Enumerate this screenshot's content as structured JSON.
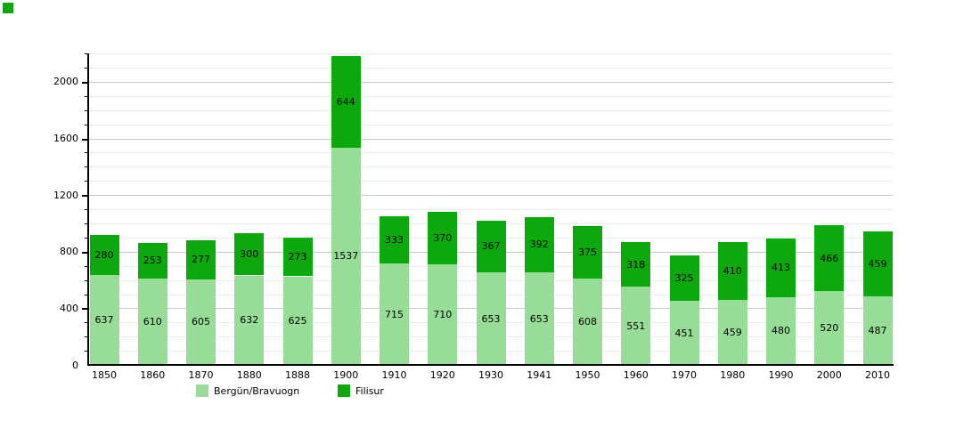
{
  "corner_marker": {
    "color": "#0BA90B"
  },
  "chart_data": {
    "type": "bar",
    "stacked": true,
    "title": "",
    "xlabel": "",
    "ylabel": "",
    "categories": [
      "1850",
      "1860",
      "1870",
      "1880",
      "1888",
      "1900",
      "1910",
      "1920",
      "1930",
      "1941",
      "1950",
      "1960",
      "1970",
      "1980",
      "1990",
      "2000",
      "2010"
    ],
    "series": [
      {
        "name": "Bergün/Bravuogn",
        "color": "#97DC97",
        "values": [
          637,
          610,
          605,
          632,
          625,
          1537,
          715,
          710,
          653,
          653,
          608,
          551,
          451,
          459,
          480,
          520,
          487
        ]
      },
      {
        "name": "Filisur",
        "color": "#0BA90B",
        "values": [
          280,
          253,
          277,
          300,
          273,
          644,
          333,
          370,
          367,
          392,
          375,
          318,
          325,
          410,
          413,
          466,
          459
        ]
      }
    ],
    "ylim": [
      0,
      2200
    ],
    "yticks": [
      0,
      400,
      800,
      1200,
      1600,
      2000
    ],
    "minor_tick_step": 100,
    "grid": true,
    "bar_value_labels": true,
    "legend_position": "bottom"
  },
  "colors": {
    "grid_minor": "#ebebeb",
    "grid_major": "#c9c9c9",
    "axis": "#000000",
    "background": "#ffffff"
  }
}
